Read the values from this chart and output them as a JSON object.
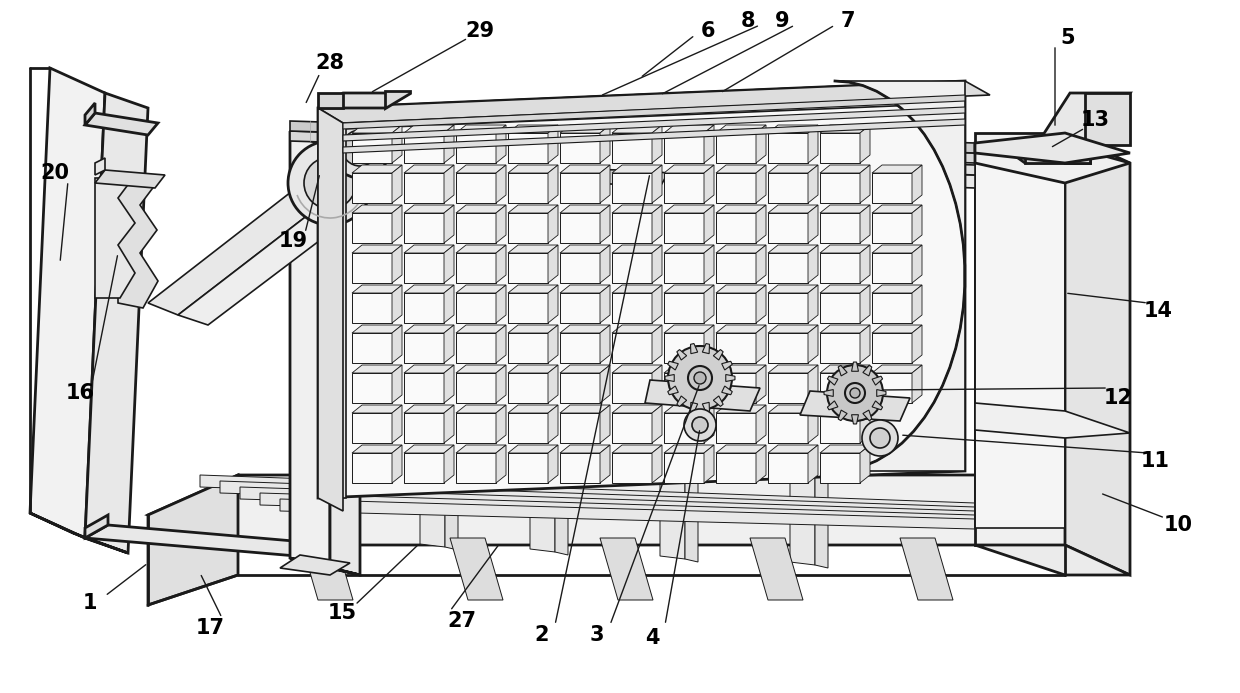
{
  "bg_color": "#ffffff",
  "line_color": "#1a1a1a",
  "label_color": "#000000",
  "fig_width": 12.4,
  "fig_height": 6.93,
  "dpi": 100
}
